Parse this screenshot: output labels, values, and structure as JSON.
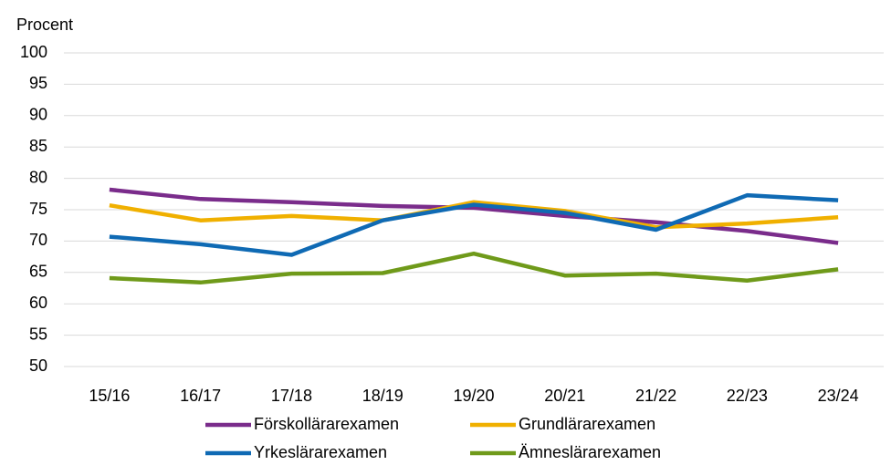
{
  "chart_data": {
    "type": "line",
    "y_axis_label": "Procent",
    "categories": [
      "15/16",
      "16/17",
      "17/18",
      "18/19",
      "19/20",
      "20/21",
      "21/22",
      "22/23",
      "23/24"
    ],
    "series": [
      {
        "name": "Förskollärarexamen",
        "color": "#7a2c8b",
        "values": [
          78.2,
          76.7,
          76.2,
          75.6,
          75.3,
          74.0,
          73.0,
          71.6,
          69.7
        ]
      },
      {
        "name": "Grundlärarexamen",
        "color": "#f0b000",
        "values": [
          75.7,
          73.3,
          74.0,
          73.3,
          76.2,
          74.8,
          72.2,
          72.8,
          73.8
        ]
      },
      {
        "name": "Yrkeslärarexamen",
        "color": "#0f6ab4",
        "values": [
          70.7,
          69.5,
          67.8,
          73.3,
          75.8,
          74.5,
          71.8,
          77.3,
          76.5
        ]
      },
      {
        "name": "Ämneslärarexamen",
        "color": "#6f9a1a",
        "values": [
          64.1,
          63.4,
          64.8,
          64.9,
          68.0,
          64.5,
          64.8,
          63.7,
          65.5
        ]
      }
    ],
    "ylim": [
      50,
      100
    ],
    "yticks": [
      50,
      55,
      60,
      65,
      70,
      75,
      80,
      85,
      90,
      95,
      100
    ],
    "grid": true
  }
}
